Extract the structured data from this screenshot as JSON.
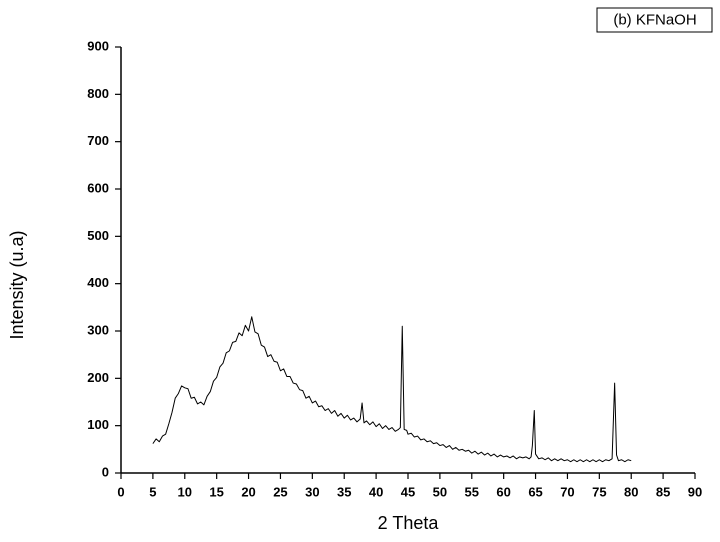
{
  "chart_data": {
    "type": "line",
    "x_label": "2 Theta",
    "y_label": "Intensity (u.a)",
    "xlim": [
      0,
      90
    ],
    "ylim": [
      0,
      900
    ],
    "xticks": [
      0,
      5,
      10,
      15,
      20,
      25,
      30,
      35,
      40,
      45,
      50,
      55,
      60,
      65,
      70,
      75,
      80,
      85,
      90
    ],
    "yticks": [
      0,
      100,
      200,
      300,
      400,
      500,
      600,
      700,
      800,
      900
    ],
    "series": [
      {
        "name": "(b) KFNaOH",
        "color": "#000000",
        "x": [
          5,
          5.5,
          6,
          6.5,
          7,
          7.5,
          8,
          8.5,
          9,
          9.5,
          10,
          10.5,
          11,
          11.5,
          12,
          12.5,
          13,
          13.5,
          14,
          14.5,
          15,
          15.5,
          16,
          16.5,
          17,
          17.5,
          18,
          18.5,
          19,
          19.5,
          20,
          20.5,
          21,
          21.5,
          22,
          22.5,
          23,
          23.5,
          24,
          24.5,
          25,
          25.5,
          26,
          26.5,
          27,
          27.5,
          28,
          28.5,
          29,
          29.5,
          30,
          30.5,
          31,
          31.5,
          32,
          32.5,
          33,
          33.5,
          34,
          34.5,
          35,
          35.5,
          36,
          36.5,
          37,
          37.5,
          37.8,
          38.1,
          38.5,
          39,
          39.5,
          40,
          40.5,
          41,
          41.5,
          42,
          42.5,
          43,
          43.5,
          43.8,
          44.1,
          44.4,
          44.8,
          45,
          45.5,
          46,
          46.5,
          47,
          47.5,
          48,
          48.5,
          49,
          49.5,
          50,
          50.5,
          51,
          51.5,
          52,
          52.5,
          53,
          53.5,
          54,
          54.5,
          55,
          55.5,
          56,
          56.5,
          57,
          57.5,
          58,
          58.5,
          59,
          59.5,
          60,
          60.5,
          61,
          61.5,
          62,
          62.5,
          63,
          63.5,
          64,
          64.3,
          64.5,
          64.8,
          65,
          65.5,
          66,
          66.5,
          67,
          67.5,
          68,
          68.5,
          69,
          69.5,
          70,
          70.5,
          71,
          71.5,
          72,
          72.5,
          73,
          73.5,
          74,
          74.5,
          75,
          75.5,
          76,
          76.5,
          77,
          77.4,
          77.7,
          78,
          78.5,
          79,
          79.5,
          80
        ],
        "values": [
          62,
          72,
          66,
          78,
          82,
          104,
          128,
          158,
          168,
          184,
          180,
          178,
          158,
          160,
          146,
          150,
          144,
          162,
          172,
          194,
          202,
          224,
          232,
          254,
          258,
          276,
          278,
          296,
          290,
          312,
          300,
          330,
          298,
          294,
          270,
          266,
          246,
          250,
          236,
          234,
          216,
          220,
          204,
          204,
          190,
          188,
          176,
          174,
          158,
          162,
          148,
          152,
          140,
          142,
          132,
          136,
          126,
          132,
          120,
          126,
          116,
          122,
          112,
          116,
          108,
          114,
          148,
          106,
          110,
          102,
          108,
          98,
          104,
          94,
          100,
          92,
          96,
          88,
          92,
          96,
          310,
          92,
          90,
          82,
          84,
          76,
          78,
          70,
          72,
          66,
          68,
          62,
          64,
          58,
          60,
          54,
          58,
          50,
          54,
          48,
          50,
          46,
          48,
          42,
          46,
          40,
          44,
          38,
          42,
          36,
          40,
          34,
          38,
          34,
          36,
          32,
          36,
          30,
          34,
          32,
          34,
          30,
          34,
          58,
          132,
          40,
          30,
          32,
          28,
          32,
          26,
          30,
          26,
          30,
          26,
          28,
          24,
          28,
          24,
          28,
          24,
          28,
          24,
          28,
          24,
          28,
          24,
          28,
          26,
          30,
          190,
          38,
          26,
          28,
          24,
          28,
          26
        ]
      }
    ]
  }
}
